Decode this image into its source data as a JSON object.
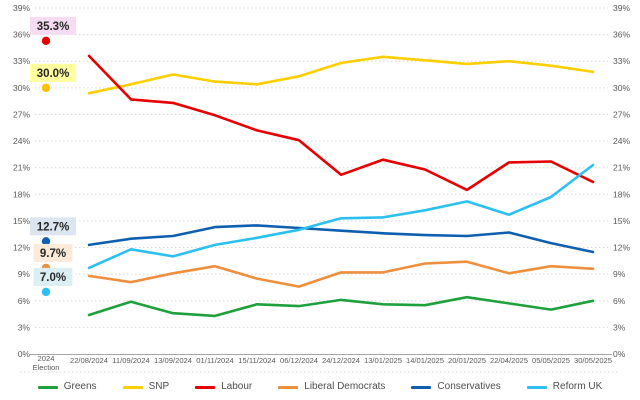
{
  "chart_data": {
    "type": "line",
    "title": "",
    "xlabel": "",
    "ylabel": "",
    "ylim": [
      0,
      39
    ],
    "ytick_step": 3,
    "ytick_suffix": "%",
    "grid": "horizontal-dotted",
    "legend_position": "bottom",
    "axis_text_color": "#595959",
    "x_labels": [
      "22/08/2024",
      "11/09/2024",
      "13/09/2024",
      "01/11/2024",
      "15/11/2024",
      "06/12/2024",
      "24/12/2024",
      "13/01/2025",
      "14/01/2025",
      "20/01/2025",
      "22/04/2025",
      "05/05/2025",
      "30/05/2025"
    ],
    "election_column_label": [
      "2024",
      "Election"
    ],
    "series": [
      {
        "name": "Greens",
        "color": "#1ea13c",
        "values": [
          4.4,
          5.9,
          4.6,
          4.3,
          5.6,
          5.4,
          6.1,
          5.6,
          5.5,
          6.4,
          5.7,
          5.0,
          6.0
        ]
      },
      {
        "name": "SNP",
        "color": "#fdce00",
        "values": [
          29.4,
          30.4,
          31.5,
          30.7,
          30.4,
          31.3,
          32.8,
          33.5,
          33.1,
          32.7,
          33.0,
          32.5,
          31.8
        ]
      },
      {
        "name": "Labour",
        "color": "#e60000",
        "values": [
          33.6,
          28.7,
          28.3,
          26.9,
          25.2,
          24.1,
          20.2,
          21.9,
          20.8,
          18.5,
          21.6,
          21.7,
          19.4
        ]
      },
      {
        "name": "Liberal Democrats",
        "color": "#ee8f3e",
        "values": [
          8.8,
          8.1,
          9.1,
          9.9,
          8.5,
          7.6,
          9.2,
          9.2,
          10.2,
          10.4,
          9.1,
          9.9,
          9.6
        ]
      },
      {
        "name": "Conservatives",
        "color": "#0f5fb0",
        "values": [
          12.3,
          13.0,
          13.3,
          14.3,
          14.5,
          14.2,
          13.9,
          13.6,
          13.4,
          13.3,
          13.7,
          12.5,
          11.5
        ]
      },
      {
        "name": "Reform UK",
        "color": "#2cc0f0",
        "values": [
          9.7,
          11.8,
          11.0,
          12.3,
          13.1,
          14.0,
          15.3,
          15.4,
          16.2,
          17.2,
          15.7,
          17.7,
          21.3
        ]
      }
    ],
    "election_points": [
      {
        "party": "Labour",
        "label": "35.3%",
        "value": 35.3,
        "dot_color": "#e60000",
        "label_bg": "#f6dcf2"
      },
      {
        "party": "SNP",
        "label": "30.0%",
        "value": 30.0,
        "dot_color": "#ffc000",
        "label_bg": "#ffff9e"
      },
      {
        "party": "Conservatives",
        "label": "12.7%",
        "value": 12.7,
        "dot_color": "#0f5fb0",
        "label_bg": "#dce6f1"
      },
      {
        "party": "Liberal Democrats",
        "label": "9.7%",
        "value": 9.7,
        "dot_color": "#ee8f3e",
        "label_bg": "#fdead9"
      },
      {
        "party": "Reform UK",
        "label": "7.0%",
        "value": 7.0,
        "dot_color": "#2cc0f0",
        "label_bg": "#daeef3"
      }
    ],
    "legend": [
      "Greens",
      "SNP",
      "Labour",
      "Liberal Democrats",
      "Conservatives",
      "Reform UK"
    ]
  }
}
